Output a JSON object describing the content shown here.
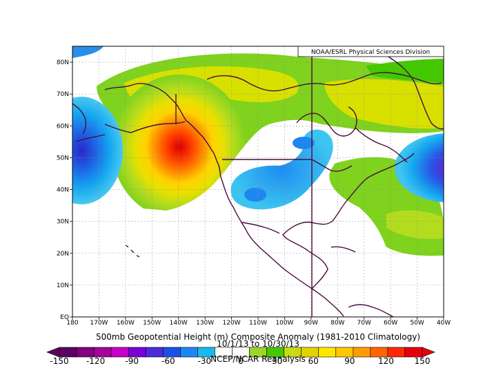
{
  "credit": "NOAA/ESRL Physical Sciences Division",
  "title": "500mb Geopotential Height (m) Composite Anomaly (1981-2010 Climatology)",
  "date_range": "10/1/13 to 10/30/13",
  "dataset": "NCEP/NCAR Reanalysis",
  "map": {
    "lon_range": [
      -180,
      -40
    ],
    "lat_range": [
      0,
      85
    ],
    "lon_labels": [
      "180",
      "170W",
      "160W",
      "150W",
      "140W",
      "130W",
      "120W",
      "110W",
      "100W",
      "90W",
      "80W",
      "70W",
      "60W",
      "50W",
      "40W"
    ],
    "lat_labels": [
      "EQ",
      "10N",
      "20N",
      "30N",
      "40N",
      "50N",
      "60N",
      "70N",
      "80N"
    ]
  },
  "colorbar": {
    "labels": [
      "-150",
      "-120",
      "-90",
      "-60",
      "-30",
      "0",
      "30",
      "60",
      "90",
      "120",
      "150"
    ],
    "colors": [
      "#5a0060",
      "#80007f",
      "#a8009b",
      "#c800c8",
      "#7a00d8",
      "#4e2bd9",
      "#1e4fe6",
      "#1e86f0",
      "#1ab8ec",
      "#ffffff",
      "#ffffff",
      "#9bd62a",
      "#44c800",
      "#c8dc14",
      "#e6d200",
      "#ffe600",
      "#ffc800",
      "#ff9c00",
      "#ff6400",
      "#ff2800",
      "#e6000a"
    ]
  }
}
